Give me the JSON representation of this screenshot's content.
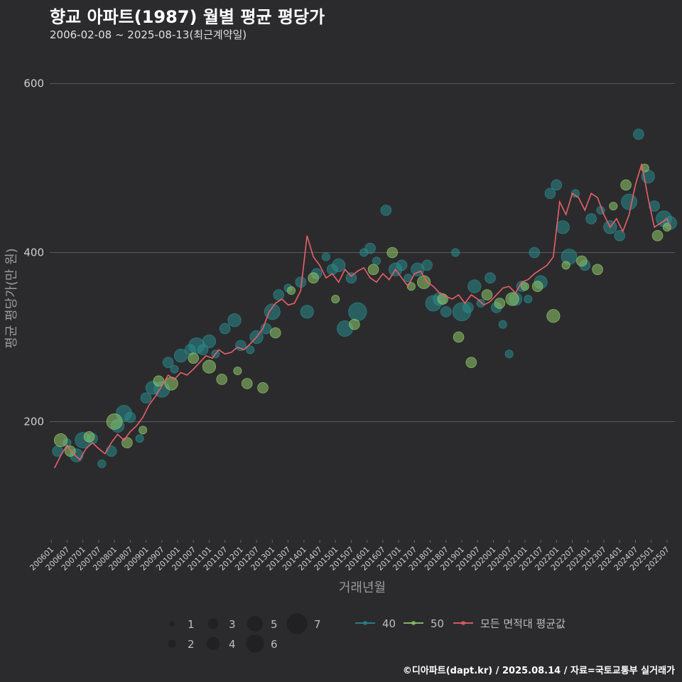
{
  "header": {
    "title": "향교 아파트(1987) 월별 평균 평당가",
    "subtitle": "2006-02-08 ~ 2025-08-13(최근계약일)"
  },
  "footer": {
    "credit": "©디아파트(dapt.kr) / 2025.08.14 / 자료=국토교통부 실거래가"
  },
  "colors": {
    "background": "#2b2b2d",
    "grid": "#5a5a5a",
    "area40": "#2a8a8c",
    "area50": "#8fc96a",
    "average": "#e8606a"
  },
  "chart_data": {
    "type": "line",
    "title": "향교 아파트(1987) 월별 평균 평당가",
    "xlabel": "거래년월",
    "ylabel": "평균 평당가(만 원)",
    "ylim": [
      60,
      640
    ],
    "yticks": [
      200,
      400,
      600
    ],
    "xlim": [
      2005.95,
      2025.75
    ],
    "xtick_labels": [
      "200601",
      "200607",
      "200701",
      "200707",
      "200801",
      "200807",
      "200901",
      "200907",
      "201001",
      "201007",
      "201101",
      "201107",
      "201201",
      "201207",
      "201301",
      "201307",
      "201401",
      "201407",
      "201501",
      "201507",
      "201601",
      "201607",
      "201701",
      "201707",
      "201801",
      "201807",
      "201901",
      "201907",
      "202001",
      "202007",
      "202101",
      "202107",
      "202201",
      "202207",
      "202301",
      "202307",
      "202401",
      "202407",
      "202501",
      "202507"
    ],
    "legend": {
      "size_title": "",
      "sizes": [
        1,
        2,
        3,
        4,
        5,
        6,
        7
      ],
      "series": [
        "40",
        "50",
        "모든 면적대 평균값"
      ],
      "position": "bottom"
    },
    "series": [
      {
        "name": "모든 면적대 평균값",
        "x": [
          2006.1,
          2006.3,
          2006.5,
          2006.7,
          2006.9,
          2007.1,
          2007.3,
          2007.5,
          2007.7,
          2007.9,
          2008.1,
          2008.3,
          2008.5,
          2008.7,
          2008.9,
          2009.1,
          2009.3,
          2009.5,
          2009.7,
          2009.9,
          2010.1,
          2010.3,
          2010.5,
          2010.7,
          2010.9,
          2011.1,
          2011.3,
          2011.5,
          2011.7,
          2011.9,
          2012.1,
          2012.3,
          2012.5,
          2012.7,
          2012.9,
          2013.1,
          2013.3,
          2013.5,
          2013.7,
          2013.9,
          2014.1,
          2014.3,
          2014.5,
          2014.7,
          2014.9,
          2015.1,
          2015.3,
          2015.5,
          2015.7,
          2015.9,
          2016.1,
          2016.3,
          2016.5,
          2016.7,
          2016.9,
          2017.1,
          2017.3,
          2017.5,
          2017.7,
          2017.9,
          2018.1,
          2018.3,
          2018.5,
          2018.7,
          2018.9,
          2019.1,
          2019.3,
          2019.5,
          2019.7,
          2019.9,
          2020.1,
          2020.3,
          2020.5,
          2020.7,
          2020.9,
          2021.1,
          2021.3,
          2021.5,
          2021.7,
          2021.9,
          2022.1,
          2022.3,
          2022.5,
          2022.7,
          2022.9,
          2023.1,
          2023.3,
          2023.5,
          2023.7,
          2023.9,
          2024.1,
          2024.3,
          2024.5,
          2024.7,
          2024.9,
          2025.1,
          2025.3,
          2025.5,
          2025.6
        ],
        "y": [
          145,
          160,
          172,
          162,
          155,
          168,
          175,
          168,
          162,
          175,
          185,
          178,
          188,
          195,
          205,
          220,
          230,
          242,
          255,
          250,
          258,
          255,
          262,
          270,
          278,
          275,
          285,
          280,
          282,
          288,
          285,
          292,
          300,
          310,
          330,
          340,
          345,
          338,
          340,
          355,
          420,
          395,
          385,
          370,
          375,
          365,
          380,
          372,
          378,
          382,
          370,
          365,
          375,
          368,
          380,
          370,
          360,
          375,
          378,
          365,
          360,
          352,
          348,
          345,
          350,
          340,
          350,
          345,
          338,
          342,
          350,
          358,
          360,
          352,
          365,
          368,
          375,
          380,
          385,
          395,
          460,
          445,
          470,
          465,
          450,
          470,
          465,
          445,
          430,
          440,
          425,
          445,
          480,
          505,
          465,
          430,
          435,
          440,
          430
        ]
      },
      {
        "name": "40",
        "x": [
          2006.2,
          2006.5,
          2006.8,
          2007.0,
          2007.3,
          2007.6,
          2007.9,
          2008.1,
          2008.3,
          2008.5,
          2008.8,
          2009.0,
          2009.2,
          2009.5,
          2009.7,
          2009.9,
          2010.1,
          2010.4,
          2010.6,
          2010.8,
          2011.0,
          2011.2,
          2011.5,
          2011.8,
          2012.0,
          2012.3,
          2012.5,
          2012.8,
          2013.0,
          2013.2,
          2013.5,
          2013.9,
          2014.1,
          2014.4,
          2014.7,
          2014.9,
          2015.1,
          2015.3,
          2015.5,
          2015.7,
          2015.9,
          2016.1,
          2016.3,
          2016.6,
          2016.9,
          2017.1,
          2017.3,
          2017.6,
          2017.9,
          2018.1,
          2018.3,
          2018.5,
          2018.8,
          2019.0,
          2019.2,
          2019.4,
          2019.6,
          2019.9,
          2020.1,
          2020.3,
          2020.5,
          2020.7,
          2020.9,
          2021.1,
          2021.3,
          2021.5,
          2021.8,
          2022.0,
          2022.2,
          2022.4,
          2022.6,
          2022.9,
          2023.1,
          2023.4,
          2023.7,
          2024.0,
          2024.3,
          2024.6,
          2024.9,
          2025.1,
          2025.4,
          2025.6
        ],
        "y": [
          165,
          175,
          160,
          178,
          180,
          150,
          165,
          195,
          210,
          205,
          180,
          228,
          240,
          238,
          270,
          262,
          278,
          285,
          290,
          285,
          295,
          280,
          310,
          320,
          290,
          285,
          300,
          310,
          330,
          350,
          358,
          365,
          330,
          375,
          395,
          380,
          385,
          310,
          370,
          330,
          400,
          405,
          390,
          450,
          380,
          385,
          370,
          380,
          385,
          340,
          345,
          330,
          400,
          330,
          335,
          360,
          340,
          370,
          335,
          315,
          280,
          345,
          360,
          345,
          400,
          365,
          470,
          480,
          430,
          395,
          470,
          385,
          440,
          450,
          430,
          420,
          460,
          540,
          490,
          455,
          440,
          435
        ],
        "size": [
          3,
          2,
          4,
          5,
          3,
          2,
          3,
          4,
          5,
          3,
          2,
          3,
          4,
          5,
          3,
          2,
          4,
          3,
          5,
          3,
          4,
          2,
          3,
          4,
          3,
          2,
          4,
          3,
          5,
          3,
          2,
          3,
          4,
          3,
          2,
          3,
          4,
          5,
          3,
          6,
          2,
          3,
          2,
          3,
          4,
          3,
          2,
          4,
          3,
          5,
          4,
          3,
          2,
          6,
          3,
          4,
          2,
          3,
          3,
          2,
          2,
          4,
          3,
          2,
          3,
          4,
          3,
          3,
          4,
          5,
          2,
          3,
          3,
          2,
          4,
          3,
          5,
          3,
          4,
          3,
          5,
          4
        ],
        "color": "#2a8a8c"
      },
      {
        "name": "50",
        "x": [
          2006.3,
          2006.6,
          2007.2,
          2008.0,
          2008.4,
          2008.9,
          2009.4,
          2009.8,
          2010.5,
          2011.0,
          2011.4,
          2011.9,
          2012.2,
          2012.7,
          2013.1,
          2013.6,
          2014.3,
          2015.0,
          2015.6,
          2016.2,
          2016.8,
          2017.4,
          2017.8,
          2018.4,
          2018.9,
          2019.3,
          2019.8,
          2020.2,
          2020.6,
          2021.0,
          2021.4,
          2021.9,
          2022.3,
          2022.8,
          2023.3,
          2023.8,
          2024.2,
          2024.8,
          2025.2,
          2025.5
        ],
        "y": [
          178,
          165,
          182,
          200,
          175,
          190,
          248,
          245,
          275,
          265,
          250,
          260,
          245,
          240,
          305,
          355,
          370,
          345,
          315,
          380,
          400,
          360,
          365,
          345,
          300,
          270,
          350,
          340,
          345,
          360,
          360,
          325,
          385,
          390,
          380,
          455,
          480,
          500,
          420,
          430
        ],
        "size": [
          4,
          3,
          3,
          5,
          3,
          2,
          3,
          4,
          3,
          4,
          3,
          2,
          3,
          3,
          3,
          2,
          3,
          2,
          3,
          3,
          3,
          2,
          4,
          3,
          3,
          3,
          3,
          3,
          4,
          2,
          3,
          4,
          2,
          3,
          3,
          2,
          3,
          2,
          3,
          2
        ],
        "color": "#8fc96a"
      }
    ]
  }
}
